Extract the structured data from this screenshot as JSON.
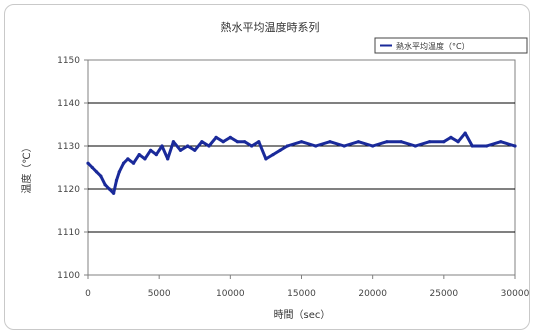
{
  "chart_data": {
    "type": "line",
    "title": "熱水平均温度時系列",
    "xlabel": "時間（sec）",
    "ylabel": "温度（℃）",
    "legend": {
      "entries": [
        "熱水平均温度（°C）"
      ],
      "placement": "top-right"
    },
    "xlim": [
      0,
      30000
    ],
    "ylim": [
      1100,
      1150
    ],
    "x_ticks": [
      0,
      5000,
      10000,
      15000,
      20000,
      25000,
      30000
    ],
    "y_ticks": [
      1100,
      1110,
      1120,
      1130,
      1140,
      1150
    ],
    "x_tick_labels": [
      "0",
      "5000",
      "10000",
      "15000",
      "20000",
      "25000",
      "30000"
    ],
    "y_tick_labels": [
      "1100",
      "1110",
      "1120",
      "1130",
      "1140",
      "1150"
    ],
    "grid": {
      "horizontal": true,
      "vertical": false
    },
    "series": [
      {
        "name": "熱水平均温度（°C）",
        "color": "#1a2a9a",
        "x": [
          0,
          300,
          600,
          900,
          1200,
          1500,
          1800,
          2000,
          2200,
          2500,
          2800,
          3200,
          3600,
          4000,
          4400,
          4800,
          5200,
          5600,
          6000,
          6500,
          7000,
          7500,
          8000,
          8500,
          9000,
          9500,
          10000,
          10500,
          11000,
          11500,
          12000,
          12500,
          13000,
          13500,
          14000,
          15000,
          16000,
          17000,
          18000,
          19000,
          20000,
          21000,
          22000,
          23000,
          24000,
          25000,
          25500,
          26000,
          26500,
          27000,
          28000,
          29000,
          30000
        ],
        "y": [
          1126,
          1125,
          1124,
          1123,
          1121,
          1120,
          1119,
          1122,
          1124,
          1126,
          1127,
          1126,
          1128,
          1127,
          1129,
          1128,
          1130,
          1127,
          1131,
          1129,
          1130,
          1129,
          1131,
          1130,
          1132,
          1131,
          1132,
          1131,
          1131,
          1130,
          1131,
          1127,
          1128,
          1129,
          1130,
          1131,
          1130,
          1131,
          1130,
          1131,
          1130,
          1131,
          1131,
          1130,
          1131,
          1131,
          1132,
          1131,
          1133,
          1130,
          1130,
          1131,
          1130
        ]
      }
    ]
  },
  "colors": {
    "series": "#1a2a9a",
    "gridline": "#000000",
    "axis": "#808080"
  }
}
